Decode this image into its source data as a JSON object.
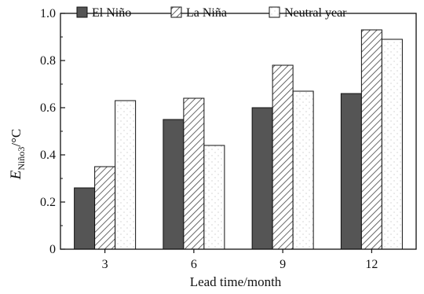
{
  "chart_data": {
    "type": "bar",
    "categories": [
      "3",
      "6",
      "9",
      "12"
    ],
    "series": [
      {
        "name": "El Niño",
        "values": [
          0.26,
          0.55,
          0.6,
          0.66
        ],
        "fill": "dark-gray"
      },
      {
        "name": "La Niña",
        "values": [
          0.35,
          0.64,
          0.78,
          0.93
        ],
        "fill": "diagonal-hatch"
      },
      {
        "name": "Neutral year",
        "values": [
          0.63,
          0.44,
          0.67,
          0.89
        ],
        "fill": "white-dotted"
      }
    ],
    "xlabel": "Lead time/month",
    "ylabel": {
      "main": "E",
      "subscript": "Niño3",
      "unit": "/°C"
    },
    "ylim": [
      0,
      1.0
    ],
    "yticks": [
      "0",
      "0.2",
      "0.4",
      "0.6",
      "0.8",
      "1.0"
    ],
    "grid": false,
    "legend_position": "top"
  },
  "colors": {
    "el_nino": "#555555",
    "axis": "#111111",
    "hatch": "#444444",
    "dots": "#bbbbbb"
  }
}
